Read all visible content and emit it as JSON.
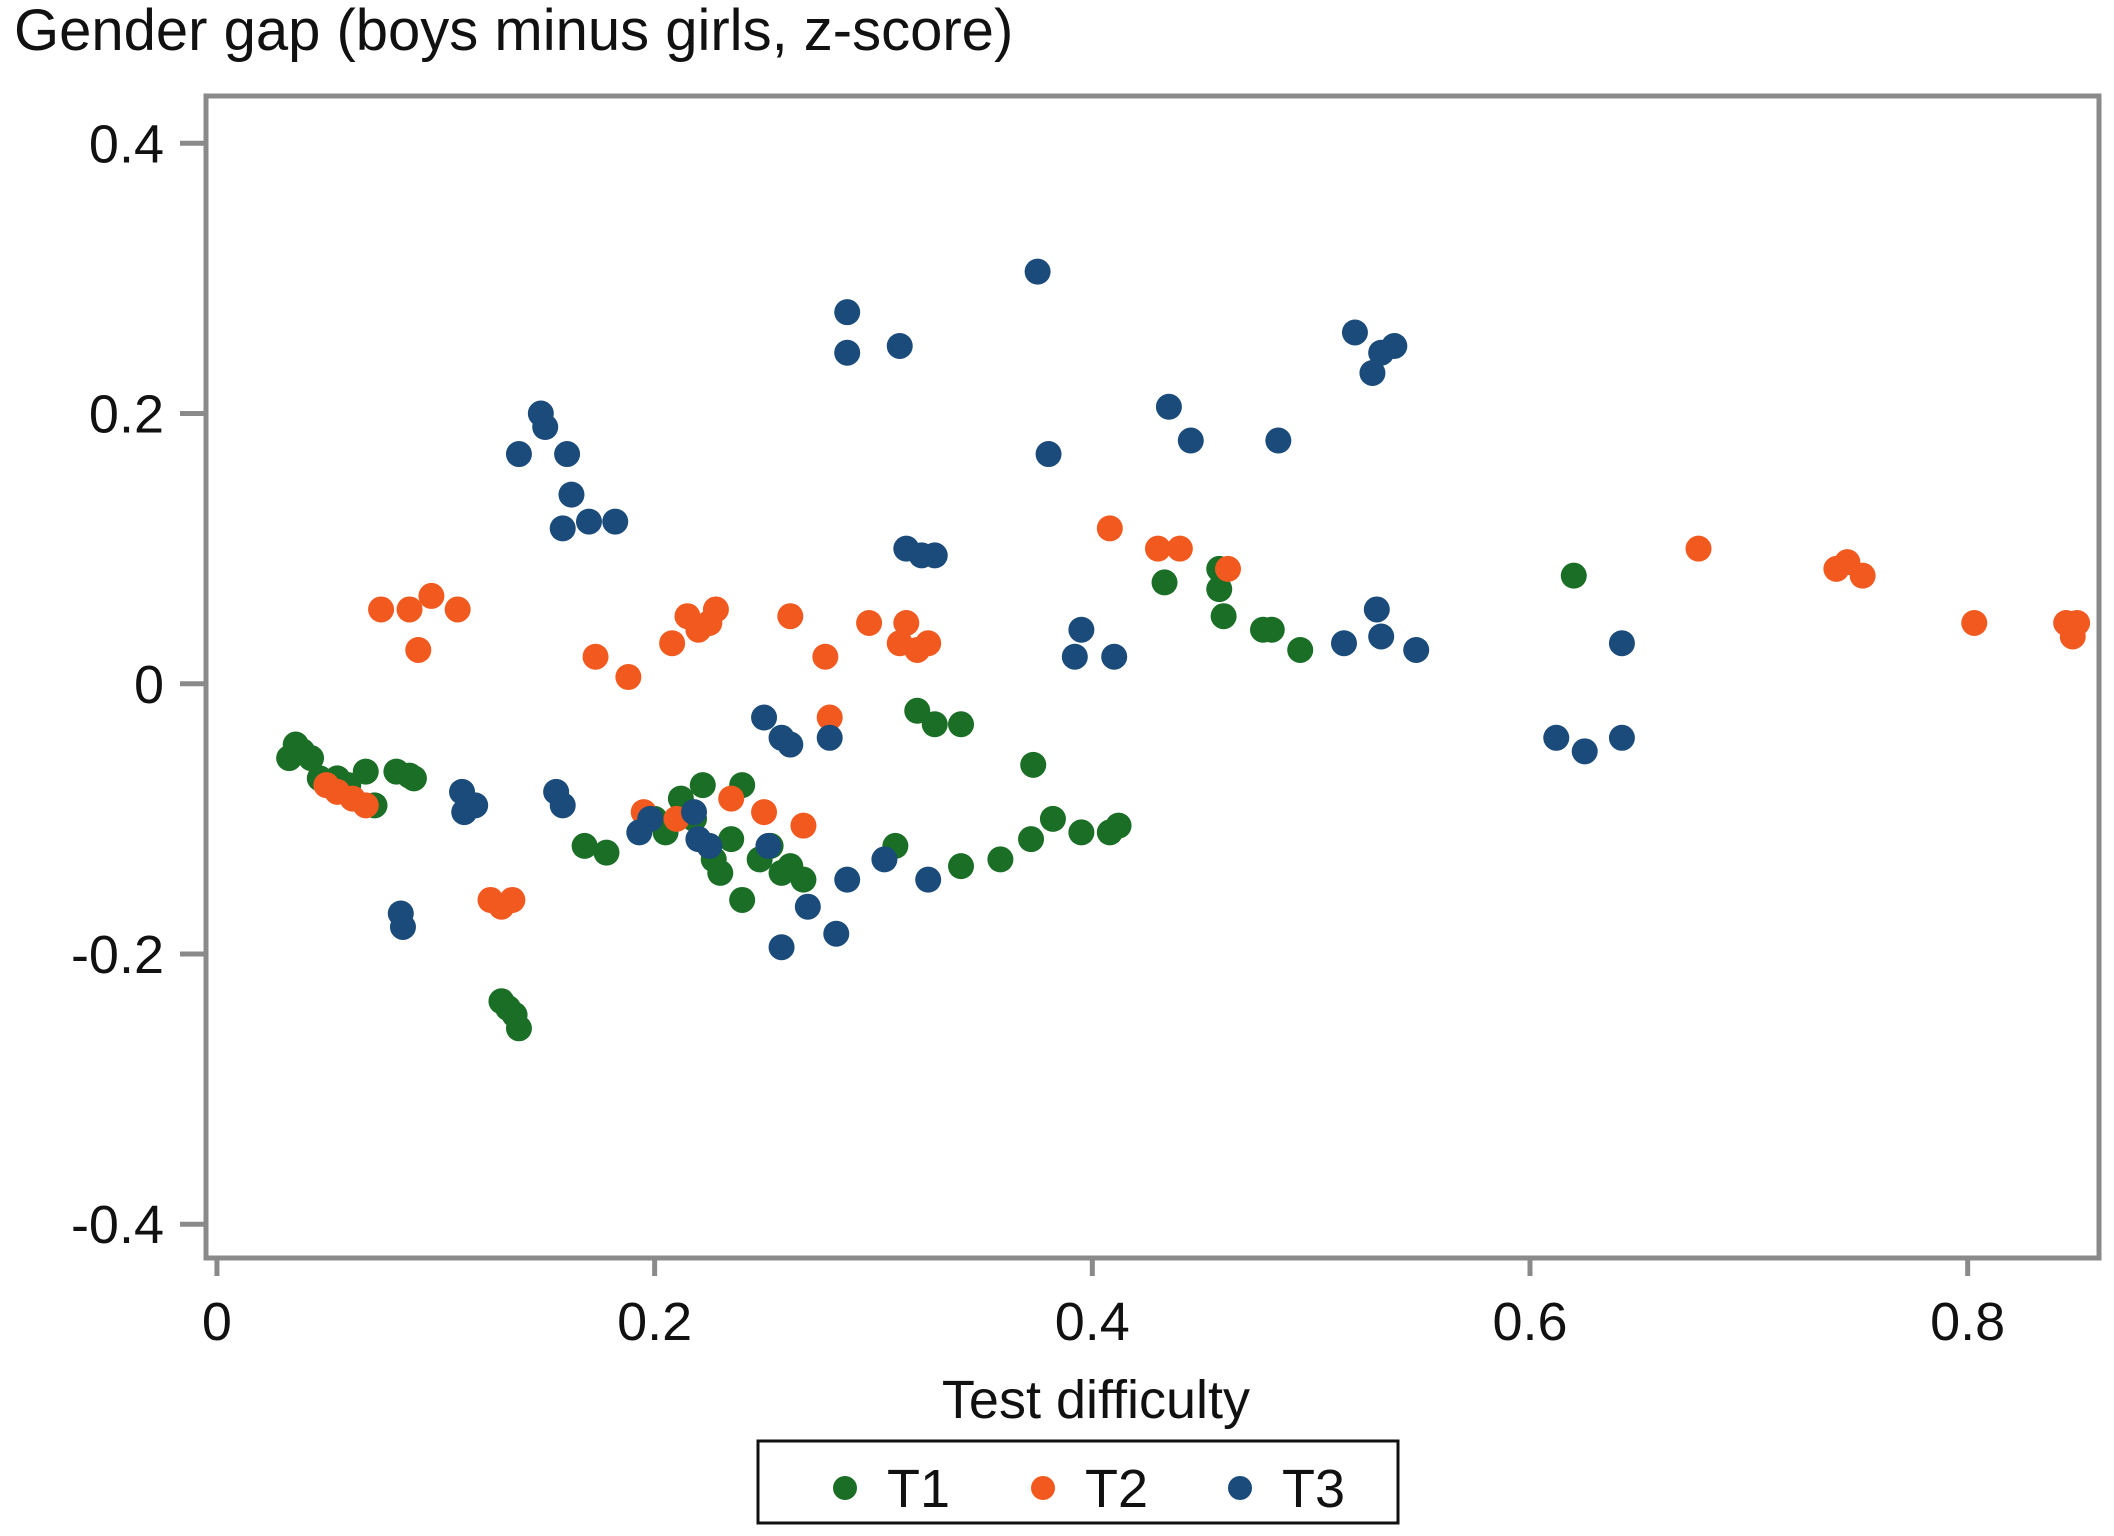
{
  "chart_data": {
    "type": "scatter",
    "title": "Gender gap (boys minus girls, z-score)",
    "xlabel": "Test difficulty",
    "ylabel": "",
    "xlim": [
      -0.005,
      0.86
    ],
    "ylim": [
      -0.425,
      0.435
    ],
    "xticks": [
      0,
      0.2,
      0.4,
      0.6,
      0.8
    ],
    "xtick_labels": [
      "0",
      "0.2",
      "0.4",
      "0.6",
      "0.8"
    ],
    "yticks": [
      0.4,
      0.2,
      0,
      -0.2,
      -0.4
    ],
    "ytick_labels": [
      "0.4",
      "0.2",
      "0",
      "-0.2",
      "-0.4"
    ],
    "grid": false,
    "legend_position": "bottom-center",
    "series": [
      {
        "name": "T1",
        "color": "#1a6e25",
        "points": [
          [
            0.033,
            -0.055
          ],
          [
            0.036,
            -0.045
          ],
          [
            0.039,
            -0.05
          ],
          [
            0.043,
            -0.055
          ],
          [
            0.047,
            -0.07
          ],
          [
            0.055,
            -0.07
          ],
          [
            0.06,
            -0.075
          ],
          [
            0.068,
            -0.065
          ],
          [
            0.072,
            -0.09
          ],
          [
            0.082,
            -0.065
          ],
          [
            0.088,
            -0.068
          ],
          [
            0.09,
            -0.07
          ],
          [
            0.168,
            -0.12
          ],
          [
            0.178,
            -0.125
          ],
          [
            0.2,
            -0.1
          ],
          [
            0.205,
            -0.11
          ],
          [
            0.212,
            -0.085
          ],
          [
            0.218,
            -0.1
          ],
          [
            0.222,
            -0.075
          ],
          [
            0.227,
            -0.13
          ],
          [
            0.23,
            -0.14
          ],
          [
            0.235,
            -0.115
          ],
          [
            0.24,
            -0.075
          ],
          [
            0.24,
            -0.16
          ],
          [
            0.248,
            -0.13
          ],
          [
            0.253,
            -0.12
          ],
          [
            0.258,
            -0.14
          ],
          [
            0.262,
            -0.135
          ],
          [
            0.268,
            -0.145
          ],
          [
            0.31,
            -0.12
          ],
          [
            0.32,
            -0.02
          ],
          [
            0.328,
            -0.03
          ],
          [
            0.34,
            -0.03
          ],
          [
            0.34,
            -0.135
          ],
          [
            0.358,
            -0.13
          ],
          [
            0.372,
            -0.115
          ],
          [
            0.373,
            -0.06
          ],
          [
            0.382,
            -0.1
          ],
          [
            0.395,
            -0.11
          ],
          [
            0.408,
            -0.11
          ],
          [
            0.412,
            -0.105
          ],
          [
            0.433,
            0.075
          ],
          [
            0.458,
            0.085
          ],
          [
            0.458,
            0.07
          ],
          [
            0.46,
            0.05
          ],
          [
            0.478,
            0.04
          ],
          [
            0.482,
            0.04
          ],
          [
            0.495,
            0.025
          ],
          [
            0.62,
            0.08
          ],
          [
            0.13,
            -0.235
          ],
          [
            0.133,
            -0.24
          ],
          [
            0.136,
            -0.245
          ],
          [
            0.138,
            -0.255
          ]
        ]
      },
      {
        "name": "T2",
        "color": "#f2591f",
        "points": [
          [
            0.05,
            -0.075
          ],
          [
            0.055,
            -0.08
          ],
          [
            0.062,
            -0.085
          ],
          [
            0.068,
            -0.09
          ],
          [
            0.075,
            0.055
          ],
          [
            0.088,
            0.055
          ],
          [
            0.092,
            0.025
          ],
          [
            0.098,
            0.065
          ],
          [
            0.11,
            0.055
          ],
          [
            0.125,
            -0.16
          ],
          [
            0.13,
            -0.165
          ],
          [
            0.135,
            -0.16
          ],
          [
            0.173,
            0.02
          ],
          [
            0.188,
            0.005
          ],
          [
            0.195,
            -0.095
          ],
          [
            0.208,
            0.03
          ],
          [
            0.21,
            -0.1
          ],
          [
            0.215,
            0.05
          ],
          [
            0.22,
            0.04
          ],
          [
            0.225,
            0.045
          ],
          [
            0.228,
            0.055
          ],
          [
            0.235,
            -0.085
          ],
          [
            0.25,
            -0.095
          ],
          [
            0.262,
            0.05
          ],
          [
            0.268,
            -0.105
          ],
          [
            0.278,
            0.02
          ],
          [
            0.28,
            -0.025
          ],
          [
            0.298,
            0.045
          ],
          [
            0.312,
            0.03
          ],
          [
            0.315,
            0.045
          ],
          [
            0.32,
            0.025
          ],
          [
            0.325,
            0.03
          ],
          [
            0.408,
            0.115
          ],
          [
            0.43,
            0.1
          ],
          [
            0.44,
            0.1
          ],
          [
            0.462,
            0.085
          ],
          [
            0.677,
            0.1
          ],
          [
            0.74,
            0.085
          ],
          [
            0.745,
            0.09
          ],
          [
            0.752,
            0.08
          ],
          [
            0.803,
            0.045
          ],
          [
            0.845,
            0.045
          ],
          [
            0.848,
            0.035
          ],
          [
            0.85,
            0.045
          ]
        ]
      },
      {
        "name": "T3",
        "color": "#1b4b7a",
        "points": [
          [
            0.084,
            -0.17
          ],
          [
            0.085,
            -0.18
          ],
          [
            0.112,
            -0.08
          ],
          [
            0.113,
            -0.095
          ],
          [
            0.118,
            -0.09
          ],
          [
            0.138,
            0.17
          ],
          [
            0.148,
            0.2
          ],
          [
            0.15,
            0.19
          ],
          [
            0.158,
            0.115
          ],
          [
            0.16,
            0.17
          ],
          [
            0.162,
            0.14
          ],
          [
            0.155,
            -0.08
          ],
          [
            0.158,
            -0.09
          ],
          [
            0.17,
            0.12
          ],
          [
            0.182,
            0.12
          ],
          [
            0.193,
            -0.11
          ],
          [
            0.198,
            -0.1
          ],
          [
            0.218,
            -0.095
          ],
          [
            0.22,
            -0.115
          ],
          [
            0.225,
            -0.12
          ],
          [
            0.25,
            -0.025
          ],
          [
            0.252,
            -0.12
          ],
          [
            0.258,
            -0.04
          ],
          [
            0.262,
            -0.045
          ],
          [
            0.258,
            -0.195
          ],
          [
            0.27,
            -0.165
          ],
          [
            0.28,
            -0.04
          ],
          [
            0.283,
            -0.185
          ],
          [
            0.288,
            0.275
          ],
          [
            0.288,
            0.245
          ],
          [
            0.288,
            -0.145
          ],
          [
            0.305,
            -0.13
          ],
          [
            0.312,
            0.25
          ],
          [
            0.315,
            0.1
          ],
          [
            0.322,
            0.095
          ],
          [
            0.328,
            0.095
          ],
          [
            0.325,
            -0.145
          ],
          [
            0.375,
            0.305
          ],
          [
            0.38,
            0.17
          ],
          [
            0.392,
            0.02
          ],
          [
            0.395,
            0.04
          ],
          [
            0.41,
            0.02
          ],
          [
            0.435,
            0.205
          ],
          [
            0.445,
            0.18
          ],
          [
            0.485,
            0.18
          ],
          [
            0.515,
            0.03
          ],
          [
            0.52,
            0.26
          ],
          [
            0.528,
            0.23
          ],
          [
            0.532,
            0.245
          ],
          [
            0.53,
            0.055
          ],
          [
            0.532,
            0.035
          ],
          [
            0.538,
            0.25
          ],
          [
            0.548,
            0.025
          ],
          [
            0.612,
            -0.04
          ],
          [
            0.625,
            -0.05
          ],
          [
            0.642,
            -0.04
          ],
          [
            0.642,
            0.03
          ]
        ]
      }
    ]
  }
}
